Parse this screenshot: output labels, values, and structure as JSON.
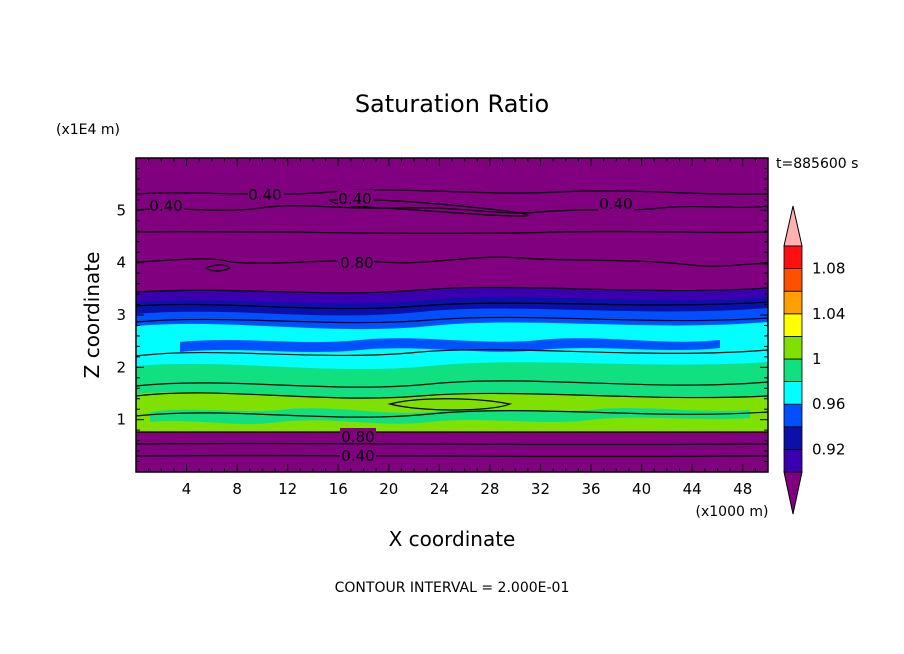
{
  "chart_data": {
    "type": "contour",
    "title": "Saturation Ratio",
    "xlabel": "X coordinate",
    "ylabel": "Z coordinate",
    "x_unit": "(x1000 m)",
    "y_unit": "(x1E4 m)",
    "time_label": "t=885600 s",
    "footer": "CONTOUR INTERVAL = 2.000E-01",
    "xlim": [
      0,
      50
    ],
    "ylim": [
      0,
      6
    ],
    "x_ticks": [
      4,
      8,
      12,
      16,
      20,
      24,
      28,
      32,
      36,
      40,
      44,
      48
    ],
    "y_ticks": [
      1,
      2,
      3,
      4,
      5
    ],
    "contour_labels": [
      "0.40",
      "0.40",
      "0.40",
      "0.40",
      "0.80",
      "0.80",
      "0.40"
    ],
    "colorbar": {
      "levels": [
        0.9,
        0.92,
        0.94,
        0.96,
        0.98,
        1.0,
        1.02,
        1.04,
        1.06,
        1.08,
        1.1
      ],
      "tick_labels": [
        "0.92",
        "0.96",
        "1",
        "1.04",
        "1.08"
      ],
      "colors": [
        "#800080",
        "#3a00b0",
        "#0a10a8",
        "#0050ff",
        "#00ffff",
        "#10e080",
        "#80e000",
        "#ffff00",
        "#ffa000",
        "#ff5000",
        "#ff1010",
        "#ffb0b0"
      ]
    }
  }
}
